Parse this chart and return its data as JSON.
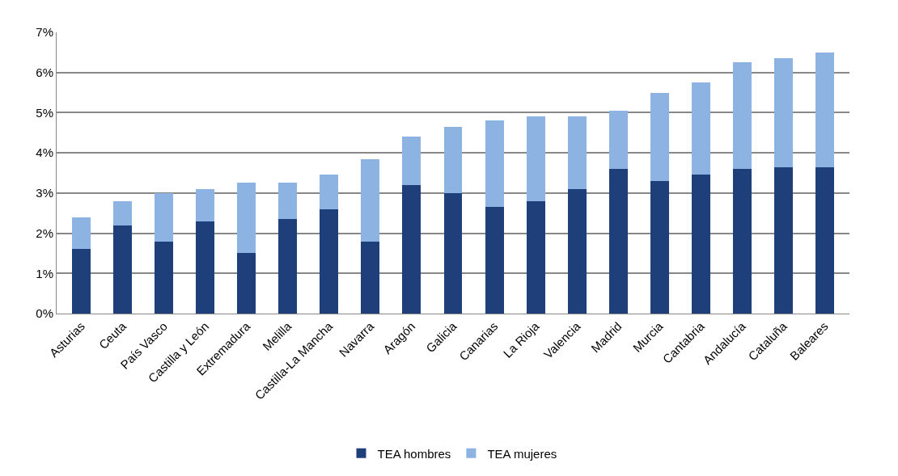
{
  "chart_data": {
    "type": "bar",
    "stacked": true,
    "categories": [
      "Asturias",
      "Ceuta",
      "País Vasco",
      "Castilla y León",
      "Extremadura",
      "Melilla",
      "Castilla-La Mancha",
      "Navarra",
      "Aragón",
      "Galicia",
      "Canarias",
      "La Rioja",
      "Valencia",
      "Madrid",
      "Murcia",
      "Cantabria",
      "Andalucía",
      "Cataluña",
      "Baleares"
    ],
    "series": [
      {
        "name": "TEA hombres",
        "color": "#1f3f7a",
        "values": [
          1.6,
          2.2,
          1.8,
          2.3,
          1.5,
          2.35,
          2.6,
          1.8,
          3.2,
          3.0,
          2.65,
          2.8,
          3.1,
          3.6,
          3.3,
          3.45,
          3.6,
          3.65,
          3.65
        ]
      },
      {
        "name": "TEA mujeres",
        "color": "#8db3e2",
        "values": [
          0.8,
          0.6,
          1.2,
          0.8,
          1.75,
          0.9,
          0.85,
          2.05,
          1.2,
          1.65,
          2.15,
          2.1,
          1.8,
          1.45,
          2.2,
          2.3,
          2.65,
          2.7,
          2.85
        ]
      }
    ],
    "ylim": [
      0,
      7
    ],
    "yticks": [
      {
        "value": 0,
        "label": "0%"
      },
      {
        "value": 1,
        "label": "1%"
      },
      {
        "value": 2,
        "label": "2%"
      },
      {
        "value": 3,
        "label": "3%"
      },
      {
        "value": 4,
        "label": "4%"
      },
      {
        "value": 5,
        "label": "5%"
      },
      {
        "value": 6,
        "label": "6%"
      },
      {
        "value": 7,
        "label": "7%"
      }
    ],
    "grid": "y",
    "legend": "bottom"
  }
}
